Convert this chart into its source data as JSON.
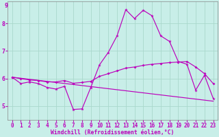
{
  "xlabel": "Windchill (Refroidissement éolien,°C)",
  "background_color": "#c8eee8",
  "grid_color": "#aad8cc",
  "line_color": "#bb00bb",
  "spine_color": "#888888",
  "xlim": [
    -0.5,
    23.5
  ],
  "ylim": [
    4.5,
    8.8
  ],
  "yticks": [
    5,
    6,
    7,
    8
  ],
  "xticks": [
    0,
    1,
    2,
    3,
    4,
    5,
    6,
    7,
    8,
    9,
    10,
    11,
    12,
    13,
    14,
    15,
    16,
    17,
    18,
    19,
    20,
    21,
    22,
    23
  ],
  "line1_x": [
    0,
    1,
    2,
    3,
    4,
    5,
    6,
    7,
    8,
    9,
    10,
    11,
    12,
    13,
    14,
    15,
    16,
    17,
    18,
    19,
    20,
    21,
    22,
    23
  ],
  "line1_y": [
    6.05,
    5.82,
    5.88,
    5.82,
    5.68,
    5.62,
    5.72,
    4.88,
    4.9,
    5.68,
    6.5,
    6.95,
    7.55,
    8.5,
    8.18,
    8.48,
    8.28,
    7.55,
    7.35,
    6.62,
    6.52,
    5.58,
    6.12,
    5.28
  ],
  "line2_x": [
    0,
    1,
    2,
    3,
    4,
    5,
    6,
    7,
    8,
    9,
    10,
    11,
    12,
    13,
    14,
    15,
    16,
    17,
    18,
    19,
    20,
    21,
    22,
    23
  ],
  "line2_y": [
    6.05,
    6.0,
    5.95,
    5.93,
    5.88,
    5.88,
    5.93,
    5.83,
    5.86,
    5.9,
    6.08,
    6.18,
    6.28,
    6.38,
    6.42,
    6.48,
    6.52,
    6.55,
    6.58,
    6.6,
    6.62,
    6.42,
    6.18,
    5.82
  ],
  "line3_x": [
    0,
    23
  ],
  "line3_y": [
    6.05,
    5.18
  ],
  "xlabel_fontsize": 5.8,
  "tick_fontsize": 5.5,
  "linewidth": 0.85,
  "markersize": 2.5
}
